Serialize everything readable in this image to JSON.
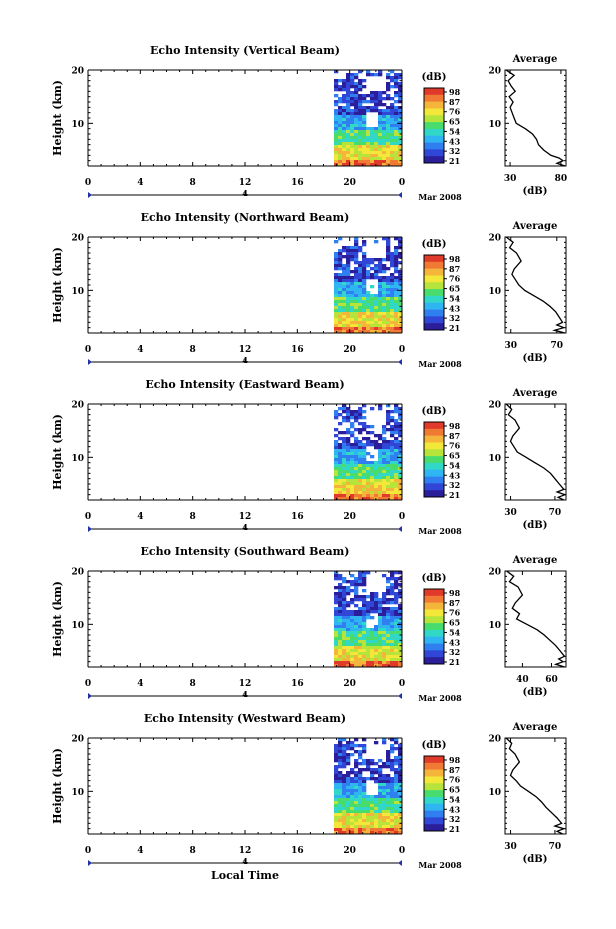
{
  "figure": {
    "xlabel": "Local Time",
    "date_label": "Mar 2008",
    "sub_axis_label": "4",
    "colorbar_title": "(dB)",
    "avg_title": "Average",
    "avg_xlabel": "(dB)",
    "ylabel": "Height (km)",
    "colors": {
      "palette": [
        "#2a1e9a",
        "#2f46d6",
        "#2f7ff0",
        "#2fb6f2",
        "#31d7c7",
        "#47dc6b",
        "#b6e43a",
        "#f3e83a",
        "#f5b43a",
        "#f07a34",
        "#e03a2a"
      ]
    }
  },
  "chart_data": [
    {
      "type": "heatmap",
      "title": "Echo Intensity (Vertical Beam)",
      "xlabel": "Local Time",
      "ylabel": "Height (km)",
      "xlim": [
        0,
        24
      ],
      "x_ticks": [
        "0",
        "4",
        "8",
        "12",
        "16",
        "20",
        "0"
      ],
      "ylim": [
        2,
        20
      ],
      "y_ticks": [
        "10",
        "20"
      ],
      "data_start_hour": 18.8,
      "colorbar": {
        "unit": "(dB)",
        "levels": [
          "98",
          "87",
          "76",
          "65",
          "54",
          "43",
          "32",
          "21"
        ]
      },
      "average_profile": {
        "title": "Average",
        "xlabel": "(dB)",
        "xlim": [
          25,
          85
        ],
        "x_ticks": [
          "30",
          "80"
        ],
        "points": [
          [
            26,
            20
          ],
          [
            34,
            19
          ],
          [
            28,
            18
          ],
          [
            31,
            17
          ],
          [
            35,
            16
          ],
          [
            29,
            15
          ],
          [
            33,
            14
          ],
          [
            30,
            13
          ],
          [
            32,
            12
          ],
          [
            34,
            11
          ],
          [
            36,
            10
          ],
          [
            45,
            9
          ],
          [
            52,
            8
          ],
          [
            56,
            7
          ],
          [
            58,
            6
          ],
          [
            63,
            5
          ],
          [
            70,
            4
          ],
          [
            78,
            3.5
          ],
          [
            82,
            3
          ],
          [
            76,
            2.5
          ],
          [
            84,
            2
          ]
        ]
      }
    },
    {
      "type": "heatmap",
      "title": "Echo Intensity (Northward Beam)",
      "xlabel": "Local Time",
      "ylabel": "Height (km)",
      "xlim": [
        0,
        24
      ],
      "x_ticks": [
        "0",
        "4",
        "8",
        "12",
        "16",
        "20",
        "0"
      ],
      "ylim": [
        2,
        20
      ],
      "y_ticks": [
        "10",
        "20"
      ],
      "data_start_hour": 18.8,
      "colorbar": {
        "unit": "(dB)",
        "levels": [
          "98",
          "87",
          "76",
          "65",
          "54",
          "43",
          "32",
          "21"
        ]
      },
      "average_profile": {
        "title": "Average",
        "xlabel": "(dB)",
        "xlim": [
          25,
          78
        ],
        "x_ticks": [
          "30",
          "70"
        ],
        "points": [
          [
            26,
            20
          ],
          [
            32,
            19
          ],
          [
            29,
            18
          ],
          [
            35,
            17
          ],
          [
            39,
            15.5
          ],
          [
            33,
            14
          ],
          [
            31,
            13
          ],
          [
            34,
            12
          ],
          [
            37,
            11
          ],
          [
            42,
            10
          ],
          [
            50,
            9
          ],
          [
            58,
            8
          ],
          [
            64,
            7
          ],
          [
            69,
            6
          ],
          [
            72,
            5
          ],
          [
            75,
            4
          ],
          [
            70,
            3.5
          ],
          [
            76,
            3
          ],
          [
            68,
            2.5
          ],
          [
            77,
            2
          ]
        ]
      }
    },
    {
      "type": "heatmap",
      "title": "Echo Intensity (Eastward Beam)",
      "xlabel": "Local Time",
      "ylabel": "Height (km)",
      "xlim": [
        0,
        24
      ],
      "x_ticks": [
        "0",
        "4",
        "8",
        "12",
        "16",
        "20",
        "0"
      ],
      "ylim": [
        2,
        20
      ],
      "y_ticks": [
        "10",
        "20"
      ],
      "data_start_hour": 18.8,
      "colorbar": {
        "unit": "(dB)",
        "levels": [
          "98",
          "87",
          "76",
          "65",
          "54",
          "43",
          "32",
          "21"
        ]
      },
      "average_profile": {
        "title": "Average",
        "xlabel": "(dB)",
        "xlim": [
          25,
          80
        ],
        "x_ticks": [
          "30",
          "70"
        ],
        "points": [
          [
            26,
            20
          ],
          [
            31,
            19
          ],
          [
            28,
            18
          ],
          [
            34,
            17
          ],
          [
            38,
            15.5
          ],
          [
            32,
            14
          ],
          [
            30,
            13
          ],
          [
            33,
            12
          ],
          [
            36,
            11
          ],
          [
            44,
            10
          ],
          [
            52,
            9
          ],
          [
            60,
            8
          ],
          [
            66,
            7
          ],
          [
            70,
            6
          ],
          [
            74,
            5
          ],
          [
            78,
            4
          ],
          [
            72,
            3.5
          ],
          [
            79,
            3
          ],
          [
            73,
            2.5
          ],
          [
            78,
            2
          ]
        ]
      }
    },
    {
      "type": "heatmap",
      "title": "Echo Intensity (Southward Beam)",
      "xlabel": "Local Time",
      "ylabel": "Height (km)",
      "xlim": [
        0,
        24
      ],
      "x_ticks": [
        "0",
        "4",
        "8",
        "12",
        "16",
        "20",
        "0"
      ],
      "ylim": [
        2,
        20
      ],
      "y_ticks": [
        "10",
        "20"
      ],
      "data_start_hour": 18.8,
      "colorbar": {
        "unit": "(dB)",
        "levels": [
          "98",
          "87",
          "76",
          "65",
          "54",
          "43",
          "32",
          "21"
        ]
      },
      "average_profile": {
        "title": "Average",
        "xlabel": "(dB)",
        "xlim": [
          28,
          70
        ],
        "x_ticks": [
          "40",
          "60"
        ],
        "points": [
          [
            29,
            20
          ],
          [
            34,
            19
          ],
          [
            31,
            18
          ],
          [
            37,
            17
          ],
          [
            40,
            15.5
          ],
          [
            35,
            14
          ],
          [
            33,
            13
          ],
          [
            38,
            12
          ],
          [
            36,
            11
          ],
          [
            43,
            10
          ],
          [
            50,
            9
          ],
          [
            55,
            8
          ],
          [
            59,
            7
          ],
          [
            63,
            6
          ],
          [
            66,
            5
          ],
          [
            69,
            4
          ],
          [
            65,
            3.5
          ],
          [
            68,
            3
          ],
          [
            63,
            2.5
          ],
          [
            69,
            2
          ]
        ]
      }
    },
    {
      "type": "heatmap",
      "title": "Echo Intensity (Westward Beam)",
      "xlabel": "Local Time",
      "ylabel": "Height (km)",
      "xlim": [
        0,
        24
      ],
      "x_ticks": [
        "0",
        "4",
        "8",
        "12",
        "16",
        "20",
        "0"
      ],
      "ylim": [
        2,
        20
      ],
      "y_ticks": [
        "10",
        "20"
      ],
      "data_start_hour": 18.8,
      "colorbar": {
        "unit": "(dB)",
        "levels": [
          "98",
          "87",
          "76",
          "65",
          "54",
          "43",
          "32",
          "21"
        ]
      },
      "average_profile": {
        "title": "Average",
        "xlabel": "(dB)",
        "xlim": [
          25,
          80
        ],
        "x_ticks": [
          "30",
          "70"
        ],
        "points": [
          [
            26,
            20
          ],
          [
            31,
            19
          ],
          [
            29,
            18
          ],
          [
            34,
            17
          ],
          [
            38,
            15.5
          ],
          [
            32,
            14
          ],
          [
            30,
            13
          ],
          [
            35,
            12
          ],
          [
            39,
            11
          ],
          [
            46,
            10
          ],
          [
            53,
            9
          ],
          [
            58,
            8
          ],
          [
            62,
            7
          ],
          [
            67,
            6
          ],
          [
            72,
            5
          ],
          [
            76,
            4
          ],
          [
            70,
            3.5
          ],
          [
            78,
            3
          ],
          [
            72,
            2.5
          ],
          [
            77,
            2
          ]
        ]
      }
    }
  ]
}
